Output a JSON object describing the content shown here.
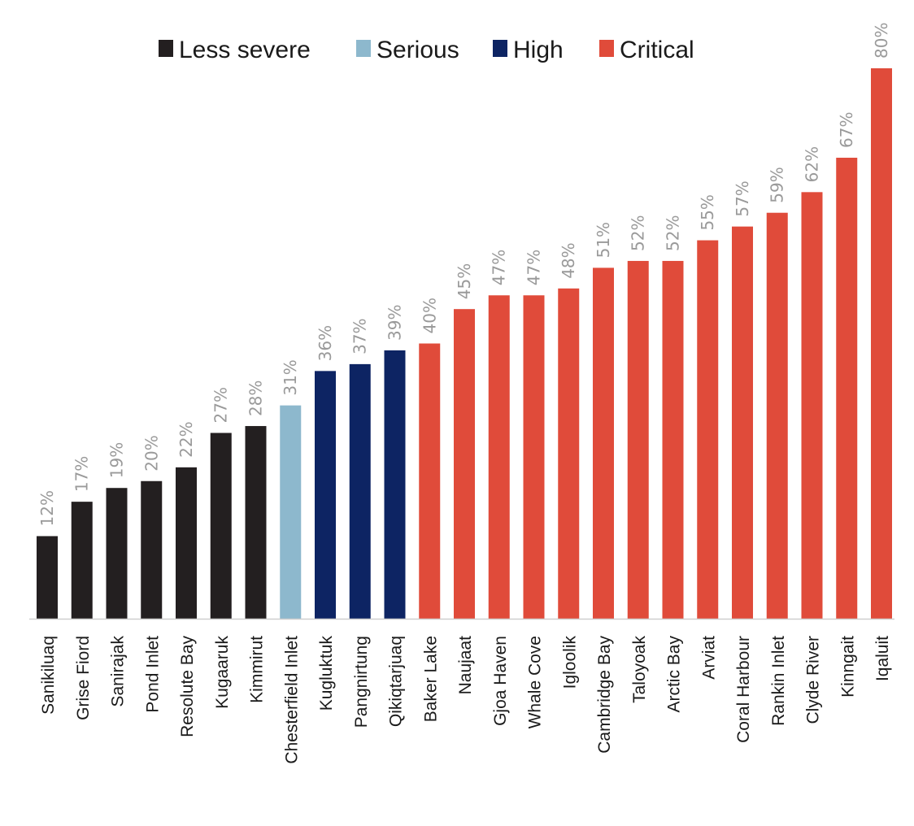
{
  "chart_data": {
    "type": "bar",
    "title": "",
    "xlabel": "",
    "ylabel": "",
    "ylim": [
      0,
      80
    ],
    "grid": false,
    "legend_placement": "top",
    "value_suffix": "%",
    "legend": [
      {
        "key": "less_severe",
        "label": "Less severe",
        "color": "#231f20"
      },
      {
        "key": "serious",
        "label": "Serious",
        "color": "#8db8cd"
      },
      {
        "key": "high",
        "label": "High",
        "color": "#0d2463"
      },
      {
        "key": "critical",
        "label": "Critical",
        "color": "#e04b3a"
      }
    ],
    "bars": [
      {
        "category": "Sanikiluaq",
        "value": 12,
        "severity": "less_severe"
      },
      {
        "category": "Grise Fiord",
        "value": 17,
        "severity": "less_severe"
      },
      {
        "category": "Sanirajak",
        "value": 19,
        "severity": "less_severe"
      },
      {
        "category": "Pond Inlet",
        "value": 20,
        "severity": "less_severe"
      },
      {
        "category": "Resolute Bay",
        "value": 22,
        "severity": "less_severe"
      },
      {
        "category": "Kugaaruk",
        "value": 27,
        "severity": "less_severe"
      },
      {
        "category": "Kimmirut",
        "value": 28,
        "severity": "less_severe"
      },
      {
        "category": "Chesterfield Inlet",
        "value": 31,
        "severity": "serious"
      },
      {
        "category": "Kugluktuk",
        "value": 36,
        "severity": "high"
      },
      {
        "category": "Pangnirtung",
        "value": 37,
        "severity": "high"
      },
      {
        "category": "Qikiqtarjuaq",
        "value": 39,
        "severity": "high"
      },
      {
        "category": "Baker Lake",
        "value": 40,
        "severity": "critical"
      },
      {
        "category": "Naujaat",
        "value": 45,
        "severity": "critical"
      },
      {
        "category": "Gjoa Haven",
        "value": 47,
        "severity": "critical"
      },
      {
        "category": "Whale Cove",
        "value": 47,
        "severity": "critical"
      },
      {
        "category": "Igloolik",
        "value": 48,
        "severity": "critical"
      },
      {
        "category": "Cambridge Bay",
        "value": 51,
        "severity": "critical"
      },
      {
        "category": "Taloyoak",
        "value": 52,
        "severity": "critical"
      },
      {
        "category": "Arctic Bay",
        "value": 52,
        "severity": "critical"
      },
      {
        "category": "Arviat",
        "value": 55,
        "severity": "critical"
      },
      {
        "category": "Coral Harbour",
        "value": 57,
        "severity": "critical"
      },
      {
        "category": "Rankin Inlet",
        "value": 59,
        "severity": "critical"
      },
      {
        "category": "Clyde River",
        "value": 62,
        "severity": "critical"
      },
      {
        "category": "Kinngait",
        "value": 67,
        "severity": "critical"
      },
      {
        "category": "Iqaluit",
        "value": 80,
        "severity": "critical"
      }
    ]
  }
}
